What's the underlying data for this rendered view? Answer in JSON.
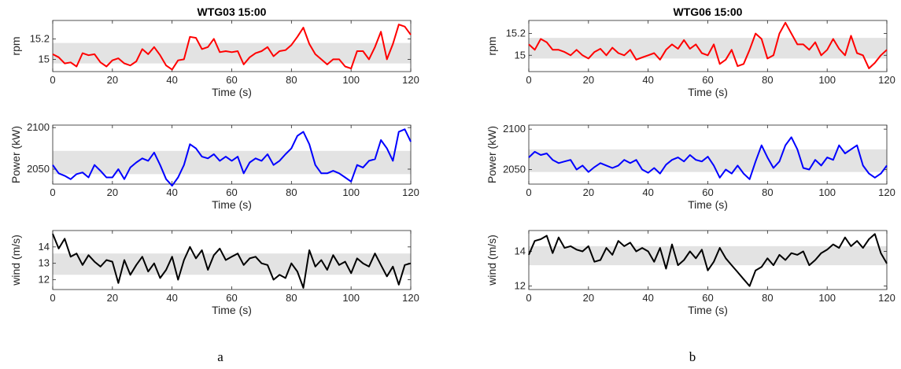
{
  "sub_labels": [
    "a",
    "b"
  ],
  "chart_data": [
    {
      "type": "line",
      "title": "WTG03 15:00",
      "subplots": [
        {
          "ylabel": "rpm",
          "xlabel": "Time (s)",
          "xlim": [
            0,
            120
          ],
          "ylim": [
            14.88,
            15.38
          ],
          "xticks": [
            0,
            20,
            40,
            60,
            80,
            100,
            120
          ],
          "yticks": [
            15,
            15.2
          ],
          "band": [
            14.96,
            15.16
          ],
          "color": "#ff0000",
          "x": [
            0,
            2,
            4,
            6,
            8,
            10,
            12,
            14,
            16,
            18,
            20,
            22,
            24,
            26,
            28,
            30,
            32,
            34,
            36,
            38,
            40,
            42,
            44,
            46,
            48,
            50,
            52,
            54,
            56,
            58,
            60,
            62,
            64,
            66,
            68,
            70,
            72,
            74,
            76,
            78,
            80,
            82,
            84,
            86,
            88,
            90,
            92,
            94,
            96,
            98,
            100,
            102,
            104,
            106,
            108,
            110,
            112,
            114,
            116,
            118,
            120
          ],
          "y": [
            15.05,
            15.02,
            14.96,
            14.97,
            14.93,
            15.06,
            15.04,
            15.05,
            14.97,
            14.93,
            14.99,
            15.01,
            14.96,
            14.94,
            14.98,
            15.1,
            15.05,
            15.12,
            15.04,
            14.94,
            14.9,
            14.99,
            15.0,
            15.22,
            15.21,
            15.1,
            15.12,
            15.2,
            15.07,
            15.08,
            15.07,
            15.08,
            14.95,
            15.02,
            15.06,
            15.08,
            15.12,
            15.03,
            15.08,
            15.09,
            15.14,
            15.22,
            15.31,
            15.15,
            15.05,
            15.0,
            14.95,
            15.0,
            15.0,
            14.93,
            14.91,
            15.08,
            15.08,
            15.0,
            15.12,
            15.27,
            15.0,
            15.15,
            15.34,
            15.32,
            15.24
          ]
        },
        {
          "ylabel": "Power (kW)",
          "xlabel": "Time (s)",
          "xlim": [
            0,
            120
          ],
          "ylim": [
            2032,
            2103
          ],
          "xticks": [
            0,
            20,
            40,
            60,
            80,
            100,
            120
          ],
          "yticks": [
            2050,
            2100
          ],
          "band": [
            2044,
            2072
          ],
          "color": "#0000ff",
          "x": [
            0,
            2,
            4,
            6,
            8,
            10,
            12,
            14,
            16,
            18,
            20,
            22,
            24,
            26,
            28,
            30,
            32,
            34,
            36,
            38,
            40,
            42,
            44,
            46,
            48,
            50,
            52,
            54,
            56,
            58,
            60,
            62,
            64,
            66,
            68,
            70,
            72,
            74,
            76,
            78,
            80,
            82,
            84,
            86,
            88,
            90,
            92,
            94,
            96,
            98,
            100,
            102,
            104,
            106,
            108,
            110,
            112,
            114,
            116,
            118,
            120
          ],
          "y": [
            2055,
            2045,
            2042,
            2038,
            2044,
            2046,
            2040,
            2055,
            2048,
            2040,
            2040,
            2050,
            2038,
            2052,
            2058,
            2063,
            2060,
            2070,
            2055,
            2038,
            2030,
            2040,
            2055,
            2080,
            2075,
            2065,
            2063,
            2068,
            2060,
            2065,
            2060,
            2065,
            2045,
            2058,
            2063,
            2060,
            2068,
            2055,
            2060,
            2068,
            2075,
            2090,
            2095,
            2080,
            2055,
            2045,
            2045,
            2048,
            2045,
            2040,
            2035,
            2055,
            2052,
            2060,
            2062,
            2085,
            2075,
            2060,
            2095,
            2098,
            2083
          ]
        },
        {
          "ylabel": "wind (m/s)",
          "xlabel": "Time (s)",
          "xlim": [
            0,
            120
          ],
          "ylim": [
            11.4,
            15.0
          ],
          "xticks": [
            0,
            20,
            40,
            60,
            80,
            100,
            120
          ],
          "yticks": [
            12,
            13,
            14
          ],
          "band": [
            12.3,
            13.6
          ],
          "color": "#000000",
          "x": [
            0,
            2,
            4,
            6,
            8,
            10,
            12,
            14,
            16,
            18,
            20,
            22,
            24,
            26,
            28,
            30,
            32,
            34,
            36,
            38,
            40,
            42,
            44,
            46,
            48,
            50,
            52,
            54,
            56,
            58,
            60,
            62,
            64,
            66,
            68,
            70,
            72,
            74,
            76,
            78,
            80,
            82,
            84,
            86,
            88,
            90,
            92,
            94,
            96,
            98,
            100,
            102,
            104,
            106,
            108,
            110,
            112,
            114,
            116,
            118,
            120
          ],
          "y": [
            14.8,
            13.9,
            14.5,
            13.4,
            13.6,
            12.9,
            13.5,
            13.1,
            12.8,
            13.2,
            13.1,
            11.8,
            13.2,
            12.3,
            12.9,
            13.4,
            12.5,
            13.0,
            12.1,
            12.6,
            13.4,
            12.0,
            13.2,
            14.0,
            13.3,
            13.8,
            12.6,
            13.5,
            13.9,
            13.2,
            13.4,
            13.6,
            12.9,
            13.3,
            13.4,
            13.0,
            12.9,
            12.0,
            12.3,
            12.1,
            13.0,
            12.5,
            11.5,
            13.8,
            12.8,
            13.2,
            12.6,
            13.5,
            12.9,
            13.1,
            12.4,
            13.3,
            13.0,
            12.8,
            13.6,
            12.9,
            12.2,
            12.8,
            11.7,
            12.9,
            13.0
          ]
        }
      ]
    },
    {
      "type": "line",
      "title": "WTG06 15:00",
      "subplots": [
        {
          "ylabel": "rpm",
          "xlabel": "Time (s)",
          "xlim": [
            0,
            120
          ],
          "ylim": [
            14.85,
            15.32
          ],
          "xticks": [
            0,
            20,
            40,
            60,
            80,
            100,
            120
          ],
          "yticks": [
            15,
            15.2
          ],
          "band": [
            14.97,
            15.16
          ],
          "color": "#ff0000",
          "x": [
            0,
            2,
            4,
            6,
            8,
            10,
            12,
            14,
            16,
            18,
            20,
            22,
            24,
            26,
            28,
            30,
            32,
            34,
            36,
            38,
            40,
            42,
            44,
            46,
            48,
            50,
            52,
            54,
            56,
            58,
            60,
            62,
            64,
            66,
            68,
            70,
            72,
            74,
            76,
            78,
            80,
            82,
            84,
            86,
            88,
            90,
            92,
            94,
            96,
            98,
            100,
            102,
            104,
            106,
            108,
            110,
            112,
            114,
            116,
            118,
            120
          ],
          "y": [
            15.1,
            15.05,
            15.15,
            15.12,
            15.05,
            15.05,
            15.03,
            15.0,
            15.05,
            15.0,
            14.97,
            15.03,
            15.06,
            15.0,
            15.07,
            15.02,
            15.0,
            15.05,
            14.96,
            14.98,
            15.0,
            15.02,
            14.96,
            15.05,
            15.1,
            15.06,
            15.14,
            15.06,
            15.1,
            15.02,
            15.0,
            15.1,
            14.92,
            14.96,
            15.05,
            14.9,
            14.92,
            15.05,
            15.2,
            15.15,
            14.97,
            15.0,
            15.2,
            15.3,
            15.2,
            15.1,
            15.1,
            15.05,
            15.12,
            15.0,
            15.05,
            15.15,
            15.06,
            15.0,
            15.18,
            15.02,
            15.0,
            14.88,
            14.93,
            15.0,
            15.05
          ]
        },
        {
          "ylabel": "Power (kW)",
          "xlabel": "Time (s)",
          "xlim": [
            0,
            120
          ],
          "ylim": [
            2032,
            2105
          ],
          "xticks": [
            0,
            20,
            40,
            60,
            80,
            100,
            120
          ],
          "yticks": [
            2050,
            2100
          ],
          "band": [
            2047,
            2075
          ],
          "color": "#0000ff",
          "x": [
            0,
            2,
            4,
            6,
            8,
            10,
            12,
            14,
            16,
            18,
            20,
            22,
            24,
            26,
            28,
            30,
            32,
            34,
            36,
            38,
            40,
            42,
            44,
            46,
            48,
            50,
            52,
            54,
            56,
            58,
            60,
            62,
            64,
            66,
            68,
            70,
            72,
            74,
            76,
            78,
            80,
            82,
            84,
            86,
            88,
            90,
            92,
            94,
            96,
            98,
            100,
            102,
            104,
            106,
            108,
            110,
            112,
            114,
            116,
            118,
            120
          ],
          "y": [
            2065,
            2072,
            2068,
            2070,
            2062,
            2058,
            2060,
            2062,
            2050,
            2055,
            2047,
            2053,
            2058,
            2055,
            2052,
            2055,
            2062,
            2058,
            2062,
            2050,
            2046,
            2052,
            2045,
            2056,
            2062,
            2065,
            2060,
            2068,
            2062,
            2060,
            2066,
            2055,
            2040,
            2050,
            2045,
            2055,
            2045,
            2038,
            2060,
            2080,
            2065,
            2052,
            2060,
            2080,
            2090,
            2075,
            2052,
            2050,
            2062,
            2055,
            2065,
            2062,
            2080,
            2070,
            2075,
            2080,
            2055,
            2045,
            2040,
            2045,
            2055
          ]
        },
        {
          "ylabel": "wind (m/s)",
          "xlabel": "Time (s)",
          "xlim": [
            0,
            120
          ],
          "ylim": [
            11.8,
            15.2
          ],
          "xticks": [
            0,
            20,
            40,
            60,
            80,
            100,
            120
          ],
          "yticks": [
            12,
            14
          ],
          "band": [
            13.2,
            14.3
          ],
          "color": "#000000",
          "x": [
            0,
            2,
            4,
            6,
            8,
            10,
            12,
            14,
            16,
            18,
            20,
            22,
            24,
            26,
            28,
            30,
            32,
            34,
            36,
            38,
            40,
            42,
            44,
            46,
            48,
            50,
            52,
            54,
            56,
            58,
            60,
            62,
            64,
            66,
            68,
            70,
            72,
            74,
            76,
            78,
            80,
            82,
            84,
            86,
            88,
            90,
            92,
            94,
            96,
            98,
            100,
            102,
            104,
            106,
            108,
            110,
            112,
            114,
            116,
            118,
            120
          ],
          "y": [
            13.8,
            14.6,
            14.7,
            14.9,
            13.9,
            14.8,
            14.2,
            14.3,
            14.1,
            14.0,
            14.3,
            13.4,
            13.5,
            14.2,
            13.8,
            14.6,
            14.3,
            14.5,
            14.0,
            14.2,
            14.0,
            13.4,
            14.2,
            13.0,
            14.4,
            13.2,
            13.5,
            14.0,
            13.6,
            14.1,
            12.9,
            13.4,
            14.2,
            13.6,
            13.2,
            12.8,
            12.4,
            12.0,
            12.9,
            13.1,
            13.6,
            13.2,
            13.8,
            13.5,
            13.9,
            13.8,
            14.0,
            13.2,
            13.5,
            13.9,
            14.1,
            14.4,
            14.2,
            14.8,
            14.3,
            14.6,
            14.2,
            14.7,
            15.0,
            13.9,
            13.3
          ]
        }
      ]
    }
  ]
}
